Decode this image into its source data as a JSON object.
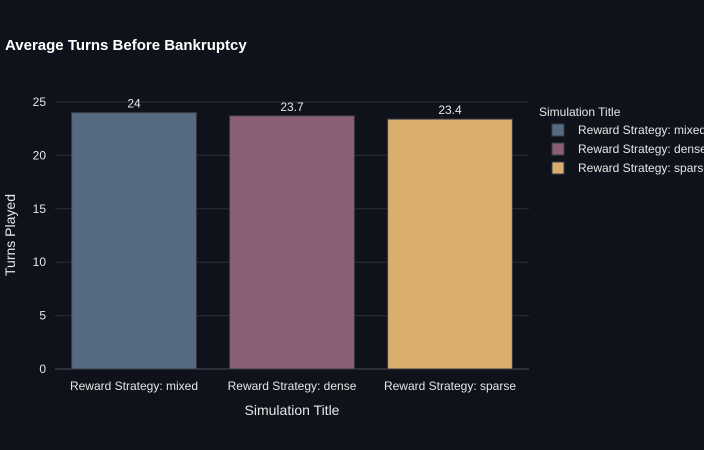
{
  "chart_data": {
    "type": "bar",
    "title": "Average Turns Before Bankruptcy",
    "xlabel": "Simulation Title",
    "ylabel": "Turns Played",
    "categories": [
      "Reward Strategy: mixed",
      "Reward Strategy: dense",
      "Reward Strategy: sparse"
    ],
    "values": [
      24,
      23.7,
      23.4
    ],
    "data_labels": [
      "24",
      "23.7",
      "23.4"
    ],
    "colors": [
      "#566b82",
      "#8a5e77",
      "#d9ad6b"
    ],
    "ylim": [
      0,
      25
    ],
    "y_ticks": [
      0,
      5,
      10,
      15,
      20,
      25
    ],
    "grid": true,
    "legend": {
      "title": "Simulation Title",
      "placement": "right",
      "entries": [
        "Reward Strategy: mixed",
        "Reward Strategy: dense",
        "Reward Strategy: sparse"
      ]
    }
  }
}
